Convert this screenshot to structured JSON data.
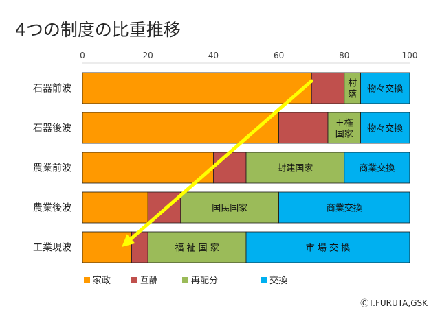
{
  "title": "4つの制度の比重推移",
  "copyright": "ⒸT.FURUTA,GSK",
  "colors": {
    "家政": "#ff9900",
    "互酬": "#c0504d",
    "再配分": "#9bbb59",
    "交換": "#00b0f0",
    "arrow": "#ffff00"
  },
  "chart_data": {
    "type": "bar",
    "orientation": "horizontal",
    "stacked": true,
    "title": "4つの制度の比重推移",
    "xlim": [
      0,
      100
    ],
    "xticks": [
      "0",
      "20",
      "40",
      "60",
      "80",
      "100"
    ],
    "categories": [
      "石器前波",
      "石器後波",
      "農業前波",
      "農業後波",
      "工業現波"
    ],
    "series": [
      {
        "name": "家政",
        "color": "#ff9900",
        "values": [
          70,
          60,
          40,
          20,
          15
        ]
      },
      {
        "name": "互酬",
        "color": "#c0504d",
        "values": [
          10,
          15,
          10,
          10,
          5
        ]
      },
      {
        "name": "再配分",
        "color": "#9bbb59",
        "values": [
          5,
          10,
          30,
          30,
          30
        ]
      },
      {
        "name": "交換",
        "color": "#00b0f0",
        "values": [
          15,
          15,
          20,
          40,
          50
        ]
      }
    ],
    "segment_labels": [
      {
        "row": 0,
        "series": 2,
        "lines": [
          "村",
          "落"
        ]
      },
      {
        "row": 0,
        "series": 3,
        "lines": [
          "物々交換"
        ]
      },
      {
        "row": 1,
        "series": 2,
        "lines": [
          "王権",
          "国家"
        ]
      },
      {
        "row": 1,
        "series": 3,
        "lines": [
          "物々交換"
        ]
      },
      {
        "row": 2,
        "series": 2,
        "lines": [
          "封建国家"
        ]
      },
      {
        "row": 2,
        "series": 3,
        "lines": [
          "商業交換"
        ]
      },
      {
        "row": 3,
        "series": 2,
        "lines": [
          "国民国家"
        ]
      },
      {
        "row": 3,
        "series": 3,
        "lines": [
          "商業交換"
        ]
      },
      {
        "row": 4,
        "series": 2,
        "lines": [
          "福 祉 国 家"
        ]
      },
      {
        "row": 4,
        "series": 3,
        "lines": [
          "市 場 交 換"
        ]
      }
    ],
    "legend": [
      "家政",
      "互酬",
      "再配分",
      "交換"
    ],
    "legend_position": "bottom",
    "grid": false,
    "annotation": {
      "type": "arrow",
      "color": "#ffff00",
      "from": {
        "row": 0,
        "x": 70
      },
      "to": {
        "row": 4,
        "x": 12
      }
    }
  }
}
